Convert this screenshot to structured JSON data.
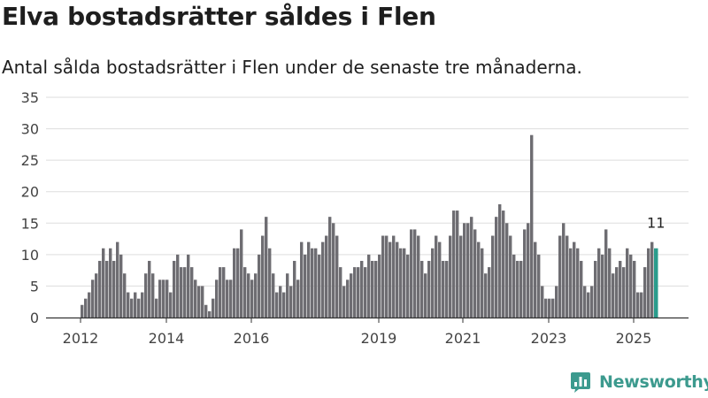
{
  "header": {
    "title": "Elva bostadsrätter såldes i Flen",
    "subtitle": "Antal sålda bostadsrätter i Flen under de senaste tre månaderna."
  },
  "brand": {
    "name": "Newsworthy",
    "icon": "bar-chart-logo-icon"
  },
  "colors": {
    "bar": "#6e6d72",
    "highlight": "#2a9c8c",
    "grid": "#dddddd",
    "axis": "#333333",
    "brand": "#3c9a8e"
  },
  "chart_data": {
    "type": "bar",
    "x_tick_labels": [
      "2012",
      "2014",
      "2016",
      "2019",
      "2021",
      "2023",
      "2025"
    ],
    "ylim": [
      0,
      35
    ],
    "y_ticks": [
      0,
      5,
      10,
      15,
      20,
      25,
      30,
      35
    ],
    "grid": true,
    "annotation": "11",
    "highlight_last": true,
    "values": [
      2,
      3,
      4,
      6,
      7,
      9,
      11,
      9,
      11,
      9,
      12,
      10,
      7,
      4,
      3,
      4,
      3,
      4,
      7,
      9,
      7,
      3,
      6,
      6,
      6,
      4,
      9,
      10,
      8,
      8,
      10,
      8,
      6,
      5,
      5,
      2,
      1,
      3,
      6,
      8,
      8,
      6,
      6,
      11,
      11,
      14,
      8,
      7,
      6,
      7,
      10,
      13,
      16,
      11,
      7,
      4,
      5,
      4,
      7,
      5,
      9,
      6,
      12,
      10,
      12,
      11,
      11,
      10,
      12,
      13,
      16,
      15,
      13,
      8,
      5,
      6,
      7,
      8,
      8,
      9,
      8,
      10,
      9,
      9,
      10,
      13,
      13,
      12,
      13,
      12,
      11,
      11,
      10,
      14,
      14,
      13,
      9,
      7,
      9,
      11,
      13,
      12,
      9,
      9,
      13,
      17,
      17,
      13,
      15,
      15,
      16,
      14,
      12,
      11,
      7,
      8,
      13,
      16,
      18,
      17,
      15,
      13,
      10,
      9,
      9,
      14,
      15,
      29,
      12,
      10,
      5,
      3,
      3,
      3,
      5,
      13,
      15,
      13,
      11,
      12,
      11,
      9,
      5,
      4,
      5,
      9,
      11,
      10,
      14,
      11,
      7,
      8,
      9,
      8,
      11,
      10,
      9,
      4,
      4,
      8,
      11,
      12,
      11
    ]
  }
}
